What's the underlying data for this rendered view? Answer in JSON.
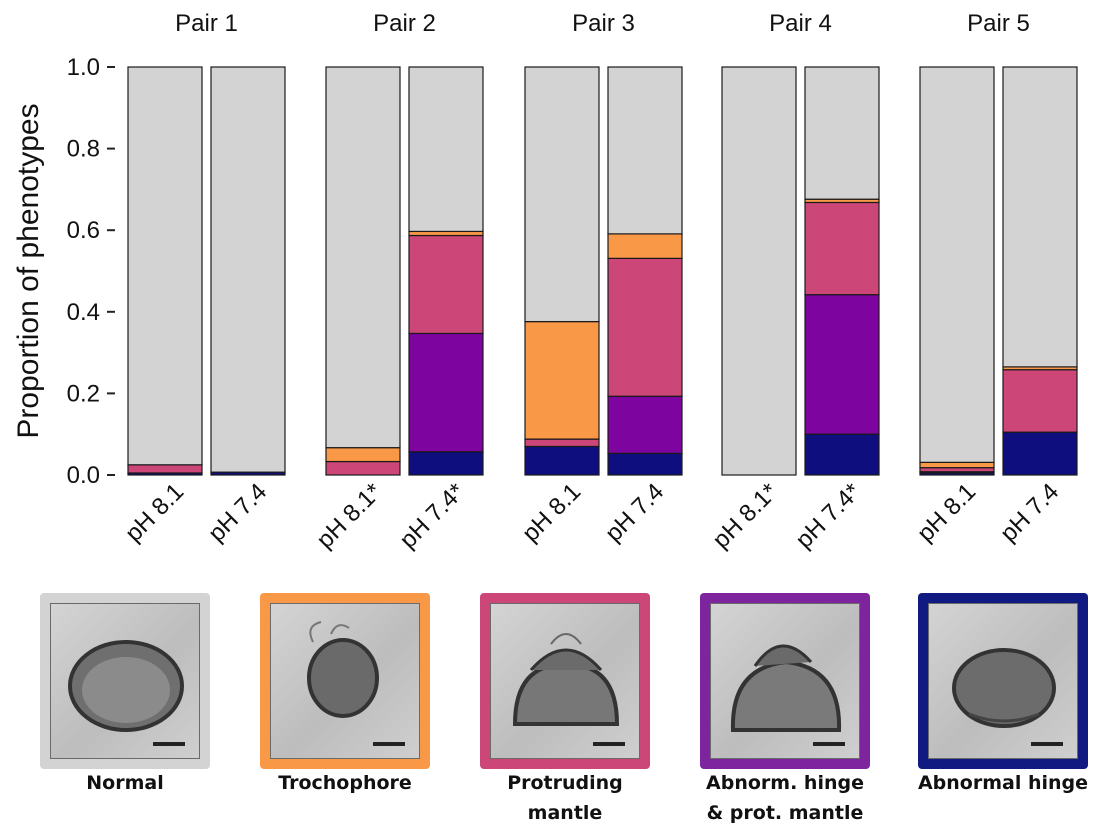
{
  "chart_data": {
    "type": "stacked-bar",
    "ylabel": "Proportion of phenotypes",
    "ylim": [
      0,
      1
    ],
    "yticks": [
      "0.0",
      "0.2",
      "0.4",
      "0.6",
      "0.8",
      "1.0"
    ],
    "legend": "image panels below chart",
    "grid": false,
    "stack_order": [
      "Abnormal hinge",
      "Abnorm. hinge & prot. mantle",
      "Protruding mantle",
      "Trochophore",
      "Normal"
    ],
    "colors": {
      "Abnormal hinge": "#0e0e7e",
      "Abnorm. hinge & prot. mantle": "#7d049e",
      "Protruding mantle": "#cc4777",
      "Trochophore": "#f99846",
      "Normal": "#d3d3d3"
    },
    "pairs": [
      {
        "name": "Pair 1",
        "bars": [
          {
            "label": "pH 8.1",
            "values": [
              0.005,
              0.0,
              0.02,
              0.0,
              0.975
            ]
          },
          {
            "label": "pH 7.4",
            "values": [
              0.007,
              0.0,
              0.0,
              0.0,
              0.993
            ]
          }
        ]
      },
      {
        "name": "Pair 2",
        "bars": [
          {
            "label": "pH 8.1*",
            "values": [
              0.0,
              0.0,
              0.033,
              0.034,
              0.933
            ]
          },
          {
            "label": "pH 7.4*",
            "values": [
              0.057,
              0.29,
              0.24,
              0.01,
              0.403
            ]
          }
        ]
      },
      {
        "name": "Pair 3",
        "bars": [
          {
            "label": "pH 8.1",
            "values": [
              0.07,
              0.0,
              0.018,
              0.288,
              0.624
            ]
          },
          {
            "label": "pH 7.4",
            "values": [
              0.053,
              0.14,
              0.338,
              0.06,
              0.409
            ]
          }
        ]
      },
      {
        "name": "Pair 4",
        "bars": [
          {
            "label": "pH 8.1*",
            "values": [
              0.0,
              0.0,
              0.0,
              0.0,
              1.0
            ]
          },
          {
            "label": "pH 7.4*",
            "values": [
              0.1,
              0.342,
              0.226,
              0.008,
              0.324
            ]
          }
        ]
      },
      {
        "name": "Pair 5",
        "bars": [
          {
            "label": "pH 8.1",
            "values": [
              0.005,
              0.003,
              0.01,
              0.013,
              0.969
            ]
          },
          {
            "label": "pH 7.4",
            "values": [
              0.105,
              0.0,
              0.153,
              0.007,
              0.735
            ]
          }
        ]
      }
    ]
  },
  "phenotype_panels": [
    {
      "caption_lines": [
        "Normal"
      ],
      "border_color": "#d3d3d3"
    },
    {
      "caption_lines": [
        "Trochophore"
      ],
      "border_color": "#f99846"
    },
    {
      "caption_lines": [
        "Protruding",
        "mantle"
      ],
      "border_color": "#cc4777"
    },
    {
      "caption_lines": [
        "Abnorm. hinge",
        "& prot. mantle"
      ],
      "border_color": "#7d249e"
    },
    {
      "caption_lines": [
        "Abnormal hinge"
      ],
      "border_color": "#101a80"
    }
  ]
}
